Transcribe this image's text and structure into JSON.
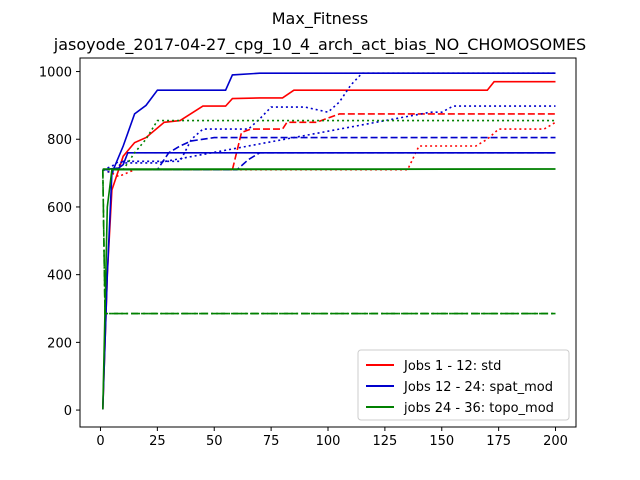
{
  "chart_data": {
    "type": "line",
    "title": "Max_Fitness",
    "subtitle": "jasoyode_2017-04-27_cpg_10_4_arch_act_bias_NO_CHOMOSOMES",
    "xlabel": "",
    "ylabel": "",
    "xlim": [
      -9,
      209
    ],
    "ylim": [
      -50,
      1040
    ],
    "xticks": [
      0,
      25,
      50,
      75,
      100,
      125,
      150,
      175,
      200
    ],
    "yticks": [
      0,
      200,
      400,
      600,
      800,
      1000
    ],
    "grid": false,
    "legend_position": "lower-right",
    "legend": [
      {
        "label": "Jobs 1 - 12: std",
        "color": "#ff0000"
      },
      {
        "label": "Jobs 12 - 24: spat_mod",
        "color": "#0000cc"
      },
      {
        "label": "jobs 24 - 36: topo_mod",
        "color": "#008000"
      }
    ],
    "series": [
      {
        "group": 0,
        "color": "#ff0000",
        "dash": "solid",
        "points": [
          [
            1,
            2
          ],
          [
            3,
            400
          ],
          [
            5,
            650
          ],
          [
            10,
            750
          ],
          [
            15,
            790
          ],
          [
            20,
            805
          ],
          [
            28,
            850
          ],
          [
            35,
            855
          ],
          [
            45,
            898
          ],
          [
            55,
            898
          ],
          [
            58,
            920
          ],
          [
            70,
            922
          ],
          [
            80,
            922
          ],
          [
            85,
            945
          ],
          [
            170,
            945
          ],
          [
            173,
            970
          ],
          [
            200,
            970
          ]
        ]
      },
      {
        "group": 0,
        "color": "#ff0000",
        "dash": "dashed",
        "points": [
          [
            1,
            710
          ],
          [
            58,
            710
          ],
          [
            62,
            820
          ],
          [
            66,
            830
          ],
          [
            80,
            830
          ],
          [
            82,
            850
          ],
          [
            95,
            850
          ],
          [
            105,
            875
          ],
          [
            200,
            875
          ]
        ]
      },
      {
        "group": 0,
        "color": "#ff0000",
        "dash": "dotted",
        "points": [
          [
            1,
            710
          ],
          [
            5,
            700
          ],
          [
            8,
            690
          ],
          [
            15,
            710
          ],
          [
            135,
            710
          ],
          [
            140,
            780
          ],
          [
            165,
            780
          ],
          [
            170,
            800
          ],
          [
            175,
            830
          ],
          [
            195,
            830
          ],
          [
            200,
            850
          ]
        ]
      },
      {
        "group": 1,
        "color": "#0000cc",
        "dash": "solid",
        "points": [
          [
            1,
            2
          ],
          [
            3,
            400
          ],
          [
            5,
            700
          ],
          [
            10,
            780
          ],
          [
            15,
            875
          ],
          [
            20,
            900
          ],
          [
            25,
            945
          ],
          [
            55,
            945
          ],
          [
            58,
            990
          ],
          [
            70,
            995
          ],
          [
            200,
            995
          ]
        ]
      },
      {
        "group": 1,
        "color": "#0000cc",
        "dash": "dashed",
        "points": [
          [
            1,
            710
          ],
          [
            25,
            710
          ],
          [
            30,
            760
          ],
          [
            35,
            780
          ],
          [
            40,
            795
          ],
          [
            50,
            805
          ],
          [
            200,
            805
          ]
        ]
      },
      {
        "group": 1,
        "color": "#0000cc",
        "dash": "dotted",
        "points": [
          [
            1,
            710
          ],
          [
            5,
            700
          ],
          [
            10,
            735
          ],
          [
            35,
            735
          ],
          [
            40,
            800
          ],
          [
            45,
            830
          ],
          [
            65,
            830
          ],
          [
            70,
            860
          ],
          [
            75,
            895
          ],
          [
            90,
            895
          ],
          [
            100,
            880
          ],
          [
            105,
            910
          ],
          [
            110,
            960
          ],
          [
            115,
            995
          ],
          [
            200,
            995
          ]
        ]
      },
      {
        "group": 1,
        "color": "#0000cc",
        "dash": "solid",
        "points": [
          [
            1,
            710
          ],
          [
            8,
            715
          ],
          [
            10,
            725
          ],
          [
            12,
            760
          ],
          [
            200,
            760
          ]
        ]
      },
      {
        "group": 1,
        "color": "#0000cc",
        "dash": "dotted",
        "points": [
          [
            1,
            710
          ],
          [
            3,
            715
          ],
          [
            5,
            720
          ],
          [
            8,
            735
          ],
          [
            10,
            730
          ],
          [
            15,
            730
          ],
          [
            20,
            730
          ],
          [
            25,
            730
          ],
          [
            145,
            880
          ],
          [
            150,
            880
          ],
          [
            155,
            898
          ],
          [
            200,
            898
          ]
        ]
      },
      {
        "group": 1,
        "color": "#0000cc",
        "dash": "dashed",
        "points": [
          [
            1,
            710
          ],
          [
            60,
            710
          ],
          [
            65,
            740
          ],
          [
            70,
            760
          ],
          [
            200,
            760
          ]
        ]
      },
      {
        "group": 2,
        "color": "#008000",
        "dash": "solid",
        "points": [
          [
            1,
            2
          ],
          [
            3,
            600
          ],
          [
            5,
            710
          ],
          [
            200,
            712
          ]
        ]
      },
      {
        "group": 2,
        "color": "#008000",
        "dash": "dotted",
        "points": [
          [
            1,
            710
          ],
          [
            10,
            710
          ],
          [
            15,
            760
          ],
          [
            20,
            800
          ],
          [
            25,
            855
          ],
          [
            200,
            855
          ]
        ]
      },
      {
        "group": 2,
        "color": "#008000",
        "dash": "dashdot",
        "points": [
          [
            1,
            710
          ],
          [
            2,
            285
          ],
          [
            200,
            285
          ]
        ]
      },
      {
        "group": 2,
        "color": "#008000",
        "dash": "dashed",
        "points": [
          [
            1,
            710
          ],
          [
            2,
            285
          ],
          [
            5,
            285
          ],
          [
            200,
            285
          ]
        ]
      },
      {
        "group": 2,
        "color": "#008000",
        "dash": "solid",
        "points": [
          [
            1,
            712
          ],
          [
            200,
            712
          ]
        ]
      }
    ]
  }
}
